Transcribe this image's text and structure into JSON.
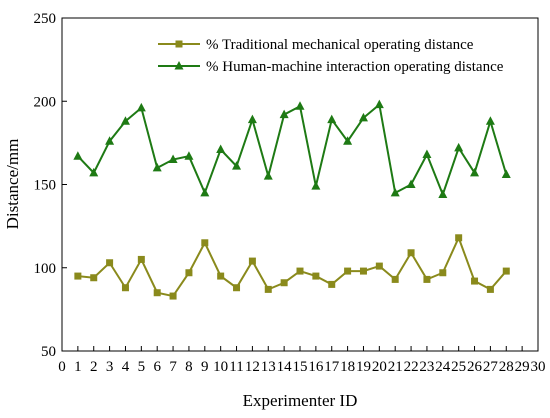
{
  "chart_data": {
    "type": "line",
    "title": "",
    "xlabel": "Experimenter ID",
    "ylabel": "Distance/mm",
    "xlim": [
      0,
      30
    ],
    "ylim": [
      50,
      250
    ],
    "xticks": [
      0,
      1,
      2,
      3,
      4,
      5,
      6,
      7,
      8,
      9,
      10,
      11,
      12,
      13,
      14,
      15,
      16,
      17,
      18,
      19,
      20,
      21,
      22,
      23,
      24,
      25,
      26,
      27,
      28,
      29,
      30
    ],
    "yticks": [
      50,
      100,
      150,
      200,
      250
    ],
    "grid": false,
    "legend_position": "top",
    "x": [
      1,
      2,
      3,
      4,
      5,
      6,
      7,
      8,
      9,
      10,
      11,
      12,
      13,
      14,
      15,
      16,
      17,
      18,
      19,
      20,
      21,
      22,
      23,
      24,
      25,
      26,
      27,
      28
    ],
    "series": [
      {
        "name": "% Traditional mechanical operating distance",
        "marker": "square",
        "color": "#8a8a1c",
        "values": [
          95,
          94,
          103,
          88,
          105,
          85,
          83,
          97,
          115,
          95,
          88,
          104,
          87,
          91,
          98,
          95,
          90,
          98,
          98,
          101,
          93,
          109,
          93,
          97,
          118,
          92,
          87,
          98
        ]
      },
      {
        "name": "% Human-machine interaction operating distance",
        "marker": "triangle",
        "color": "#1e7a14",
        "values": [
          167,
          157,
          176,
          188,
          196,
          160,
          165,
          167,
          145,
          171,
          161,
          189,
          155,
          192,
          197,
          149,
          189,
          176,
          190,
          198,
          145,
          150,
          168,
          144,
          172,
          157,
          188,
          156
        ]
      }
    ]
  }
}
